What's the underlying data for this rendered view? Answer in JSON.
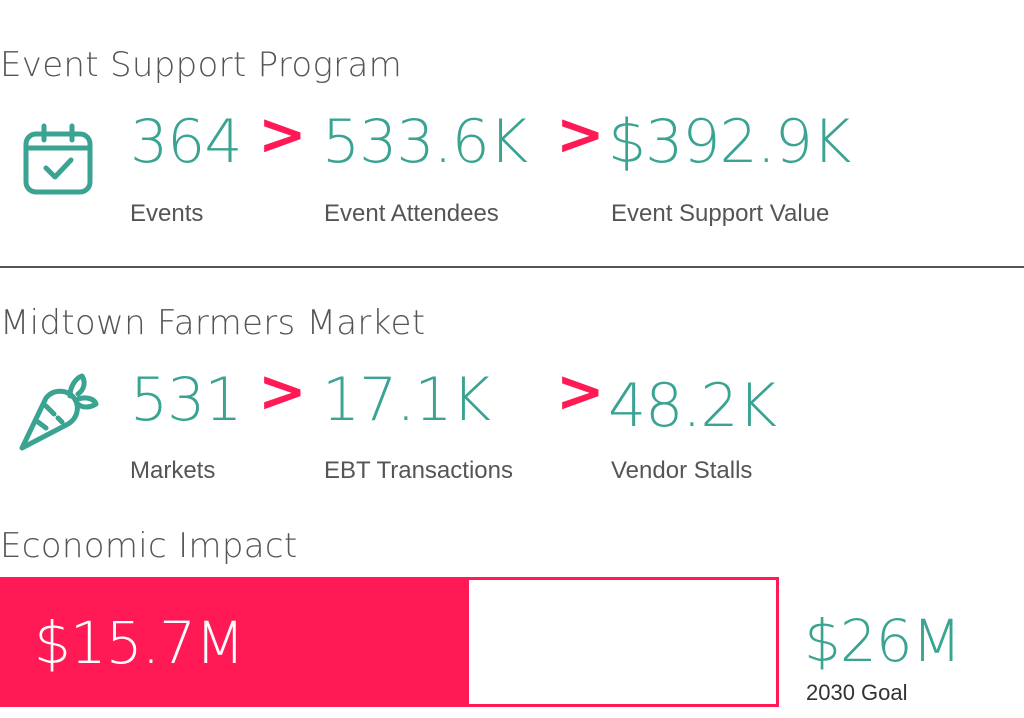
{
  "colors": {
    "accent_teal": "#3aa391",
    "accent_pink": "#ff1a55",
    "text_gray": "#555555",
    "divider": "#555555"
  },
  "event_support": {
    "title": "Event Support Program",
    "icon": "calendar-check-icon",
    "separator": ">",
    "stats": [
      {
        "value": "364",
        "label": "Events"
      },
      {
        "value": "533.6K",
        "label": "Event Attendees"
      },
      {
        "value": "$392.9K",
        "label": "Event Support Value"
      }
    ]
  },
  "farmers_market": {
    "title": "Midtown Farmers Market",
    "icon": "carrot-icon",
    "separator": ">",
    "stats": [
      {
        "value": "531",
        "label": "Markets"
      },
      {
        "value": "17.1K",
        "label": "EBT Transactions"
      },
      {
        "value": "48.2K",
        "label": "Vendor Stalls"
      }
    ]
  },
  "economic_impact": {
    "title": "Economic Impact",
    "current_value": "$15.7M",
    "goal_value": "$26M",
    "goal_label": "2030 Goal",
    "progress_fraction": 0.604
  }
}
